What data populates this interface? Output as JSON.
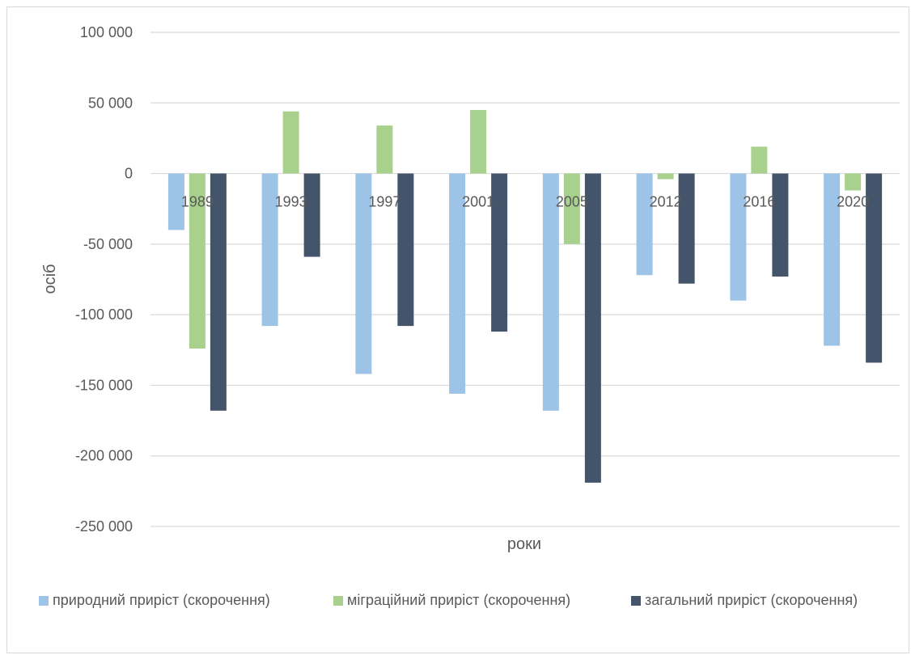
{
  "chart_data": {
    "type": "bar",
    "categories": [
      "1989",
      "1993",
      "1997",
      "2001",
      "2005",
      "2012",
      "2016",
      "2020"
    ],
    "series": [
      {
        "name": "природний приріст (скорочення)",
        "color": "#9dc3e6",
        "values": [
          -40000,
          -108000,
          -142000,
          -156000,
          -168000,
          -72000,
          -90000,
          -122000
        ]
      },
      {
        "name": "міграційний приріст (скорочення)",
        "color": "#a9d18e",
        "values": [
          -124000,
          44000,
          34000,
          45000,
          -50000,
          -4000,
          19000,
          -12000
        ]
      },
      {
        "name": "загальний приріст (скорочення)",
        "color": "#44546a",
        "values": [
          -168000,
          -59000,
          -108000,
          -112000,
          -219000,
          -78000,
          -73000,
          -134000
        ]
      }
    ],
    "yticks": [
      "100 000",
      "50 000",
      "0",
      "-50 000",
      "-100 000",
      "-150 000",
      "-200 000",
      "-250 000"
    ],
    "ylim": [
      -250000,
      100000
    ],
    "xlabel": "роки",
    "ylabel": "осіб",
    "grid": true,
    "legend": "bottom"
  }
}
